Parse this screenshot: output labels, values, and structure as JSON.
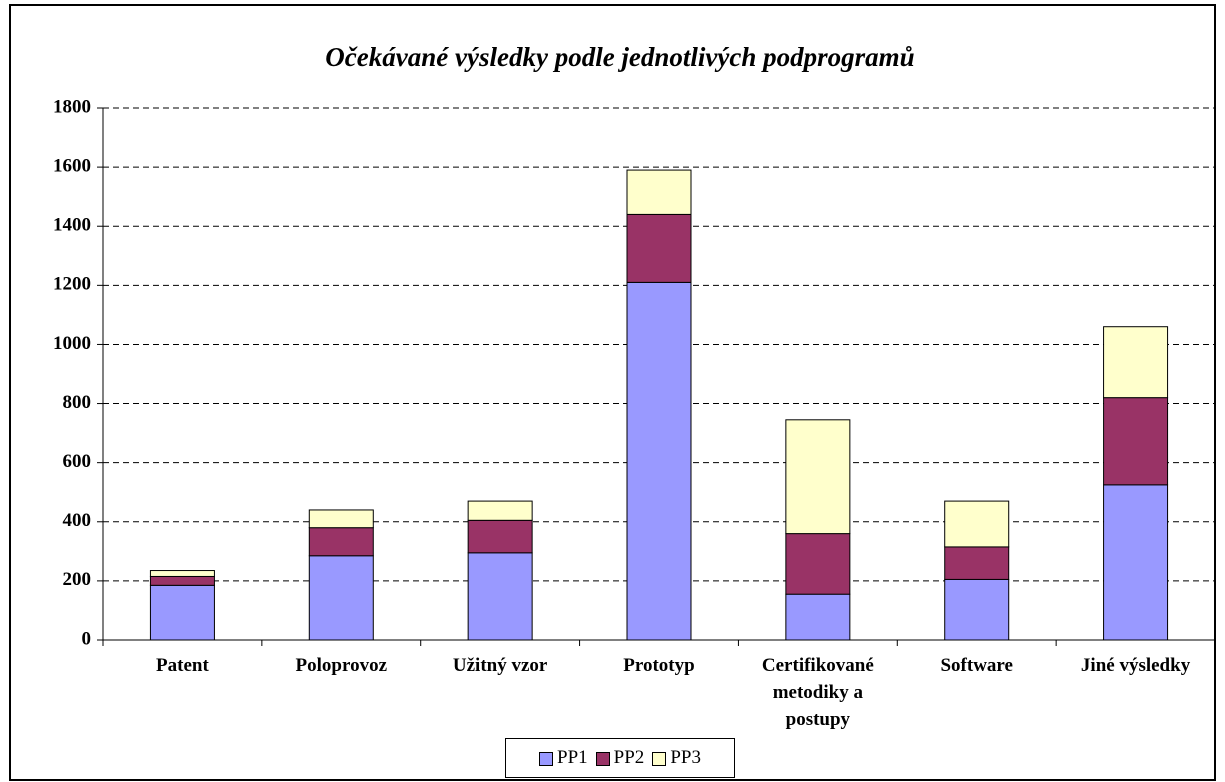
{
  "chart_data": {
    "type": "bar",
    "stacked": true,
    "title": "Očekávané výsledky podle jednotlivých podprogramů",
    "categories": [
      "Patent",
      "Poloprovoz",
      "Užitný vzor",
      "Prototyp",
      "Certifikované metodiky a postupy",
      "Software",
      "Jiné výsledky"
    ],
    "series": [
      {
        "name": "PP1",
        "color": "#9999ff",
        "values": [
          185,
          285,
          295,
          1210,
          155,
          205,
          525
        ]
      },
      {
        "name": "PP2",
        "color": "#993366",
        "values": [
          30,
          95,
          110,
          230,
          205,
          110,
          295
        ]
      },
      {
        "name": "PP3",
        "color": "#ffffcc",
        "values": [
          20,
          60,
          65,
          150,
          385,
          155,
          240
        ]
      }
    ],
    "ylim": [
      0,
      1800
    ],
    "yticks": [
      0,
      200,
      400,
      600,
      800,
      1000,
      1200,
      1400,
      1600,
      1800
    ],
    "grid": true,
    "legend": "bottom"
  }
}
